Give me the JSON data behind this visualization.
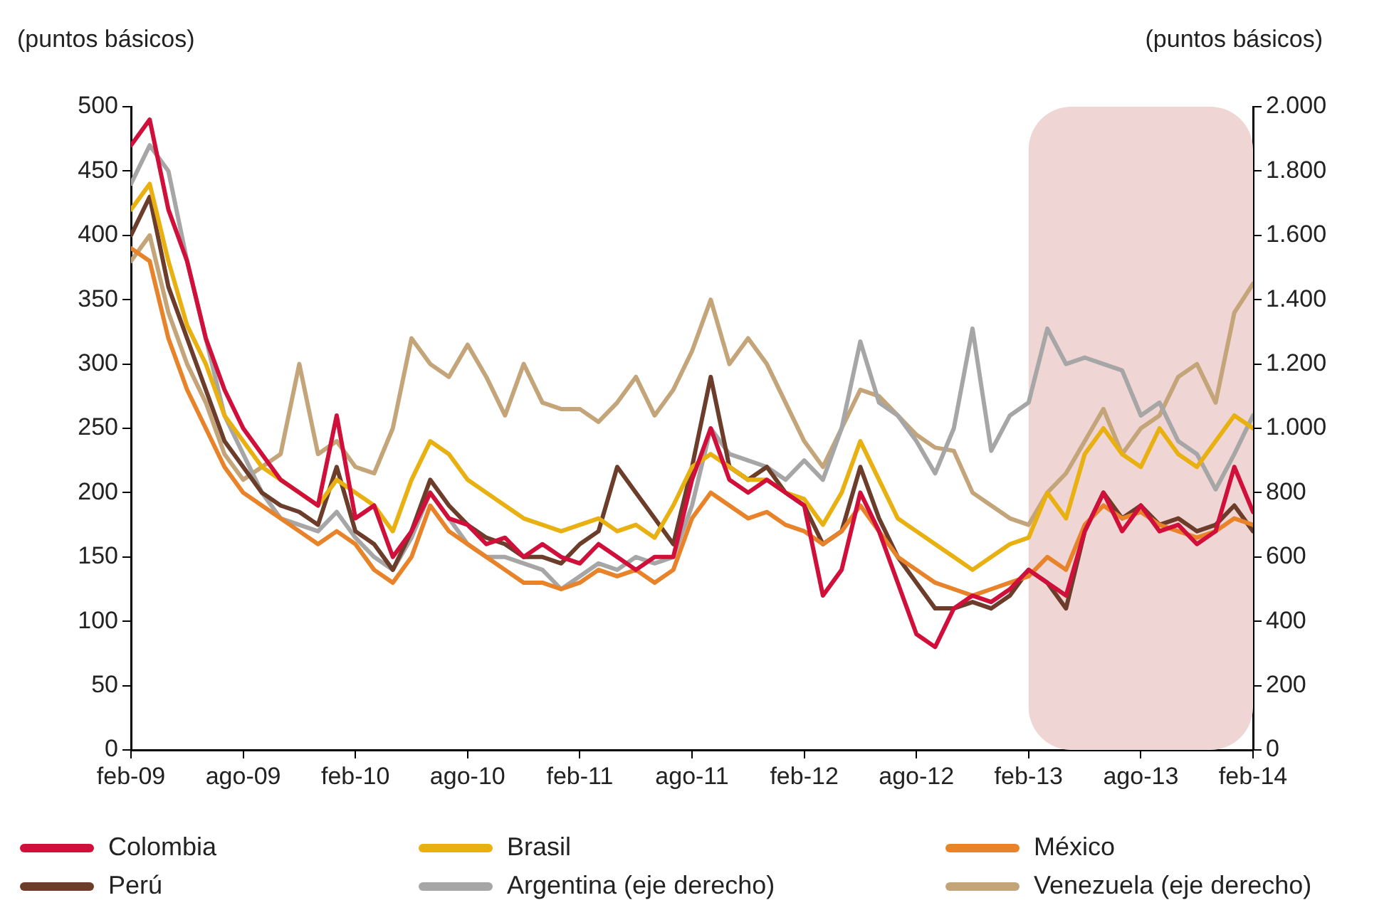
{
  "chart_data": {
    "type": "line",
    "ylabel": "(puntos básicos)",
    "y2label": "(puntos básicos)",
    "x": [
      "2009-02",
      "2009-03",
      "2009-04",
      "2009-05",
      "2009-06",
      "2009-07",
      "2009-08",
      "2009-09",
      "2009-10",
      "2009-11",
      "2009-12",
      "2010-01",
      "2010-02",
      "2010-03",
      "2010-04",
      "2010-05",
      "2010-06",
      "2010-07",
      "2010-08",
      "2010-09",
      "2010-10",
      "2010-11",
      "2010-12",
      "2011-01",
      "2011-02",
      "2011-03",
      "2011-04",
      "2011-05",
      "2011-06",
      "2011-07",
      "2011-08",
      "2011-09",
      "2011-10",
      "2011-11",
      "2011-12",
      "2012-01",
      "2012-02",
      "2012-03",
      "2012-04",
      "2012-05",
      "2012-06",
      "2012-07",
      "2012-08",
      "2012-09",
      "2012-10",
      "2012-11",
      "2012-12",
      "2013-01",
      "2013-02",
      "2013-03",
      "2013-04",
      "2013-05",
      "2013-06",
      "2013-07",
      "2013-08",
      "2013-09",
      "2013-10",
      "2013-11",
      "2013-12",
      "2014-01",
      "2014-02"
    ],
    "series": [
      {
        "name": "Colombia",
        "color": "#d0103a",
        "values": [
          470,
          490,
          420,
          380,
          320,
          280,
          250,
          230,
          210,
          200,
          190,
          260,
          180,
          190,
          150,
          170,
          200,
          180,
          175,
          160,
          165,
          150,
          160,
          150,
          145,
          160,
          150,
          140,
          150,
          150,
          210,
          250,
          210,
          200,
          210,
          200,
          190,
          120,
          140,
          200,
          170,
          130,
          90,
          80,
          110,
          120,
          115,
          125,
          140,
          130,
          120,
          170,
          200,
          170,
          190,
          170,
          175,
          160,
          170,
          220,
          185
        ]
      },
      {
        "name": "Brasil",
        "color": "#e8b010",
        "values": [
          420,
          440,
          380,
          330,
          300,
          260,
          240,
          220,
          210,
          200,
          190,
          210,
          200,
          190,
          170,
          210,
          240,
          230,
          210,
          200,
          190,
          180,
          175,
          170,
          175,
          180,
          170,
          175,
          165,
          190,
          220,
          230,
          220,
          210,
          210,
          200,
          195,
          175,
          200,
          240,
          210,
          180,
          170,
          160,
          150,
          140,
          150,
          160,
          165,
          200,
          180,
          230,
          250,
          230,
          220,
          250,
          230,
          220,
          240,
          260,
          250
        ]
      },
      {
        "name": "México",
        "color": "#e8832a",
        "values": [
          390,
          380,
          320,
          280,
          250,
          220,
          200,
          190,
          180,
          170,
          160,
          170,
          160,
          140,
          130,
          150,
          190,
          170,
          160,
          150,
          140,
          130,
          130,
          125,
          130,
          140,
          135,
          140,
          130,
          140,
          180,
          200,
          190,
          180,
          185,
          175,
          170,
          160,
          170,
          190,
          170,
          150,
          140,
          130,
          125,
          120,
          125,
          130,
          135,
          150,
          140,
          175,
          190,
          180,
          185,
          175,
          170,
          165,
          170,
          180,
          175
        ]
      },
      {
        "name": "Perú",
        "color": "#6b3d2a",
        "values": [
          400,
          430,
          360,
          320,
          280,
          240,
          220,
          200,
          190,
          185,
          175,
          220,
          170,
          160,
          140,
          170,
          210,
          190,
          175,
          165,
          160,
          150,
          150,
          145,
          160,
          170,
          220,
          200,
          180,
          160,
          220,
          290,
          220,
          210,
          220,
          200,
          190,
          160,
          170,
          220,
          180,
          150,
          130,
          110,
          110,
          115,
          110,
          120,
          140,
          130,
          110,
          170,
          200,
          180,
          190,
          175,
          180,
          170,
          175,
          190,
          170
        ]
      },
      {
        "name": "Argentina (eje derecho)",
        "color": "#a6a6a6",
        "axis": "y2",
        "values": [
          1760,
          1880,
          1800,
          1520,
          1280,
          1040,
          920,
          800,
          720,
          700,
          680,
          740,
          660,
          600,
          560,
          660,
          800,
          720,
          640,
          600,
          600,
          580,
          560,
          500,
          540,
          580,
          560,
          600,
          580,
          600,
          760,
          1000,
          920,
          900,
          880,
          840,
          900,
          840,
          1000,
          1270,
          1080,
          1040,
          960,
          860,
          1000,
          1310,
          930,
          1040,
          1080,
          1310,
          1200,
          1220,
          1200,
          1180,
          1040,
          1080,
          960,
          920,
          810,
          920,
          1040
        ]
      },
      {
        "name": "Venezuela (eje derecho)",
        "color": "#c4a57a",
        "axis": "y2",
        "values": [
          1520,
          1600,
          1360,
          1200,
          1080,
          920,
          840,
          880,
          920,
          1200,
          920,
          960,
          880,
          860,
          1000,
          1280,
          1200,
          1160,
          1260,
          1160,
          1040,
          1200,
          1080,
          1060,
          1060,
          1020,
          1080,
          1160,
          1040,
          1120,
          1240,
          1400,
          1200,
          1280,
          1200,
          1080,
          960,
          880,
          1000,
          1120,
          1100,
          1040,
          980,
          940,
          930,
          800,
          760,
          720,
          700,
          800,
          860,
          960,
          1060,
          920,
          1000,
          1040,
          1160,
          1200,
          1080,
          1360,
          1450
        ]
      }
    ],
    "xlim": [
      "2009-02",
      "2014-02"
    ],
    "xticks": [
      {
        "value": "2009-02",
        "label": "feb-09"
      },
      {
        "value": "2009-08",
        "label": "ago-09"
      },
      {
        "value": "2010-02",
        "label": "feb-10"
      },
      {
        "value": "2010-08",
        "label": "ago-10"
      },
      {
        "value": "2011-02",
        "label": "feb-11"
      },
      {
        "value": "2011-08",
        "label": "ago-11"
      },
      {
        "value": "2012-02",
        "label": "feb-12"
      },
      {
        "value": "2012-08",
        "label": "ago-12"
      },
      {
        "value": "2013-02",
        "label": "feb-13"
      },
      {
        "value": "2013-08",
        "label": "ago-13"
      },
      {
        "value": "2014-02",
        "label": "feb-14"
      }
    ],
    "ylim": [
      0,
      500
    ],
    "yticks": [
      0,
      50,
      100,
      150,
      200,
      250,
      300,
      350,
      400,
      450,
      500
    ],
    "y2lim": [
      0,
      2000
    ],
    "y2ticks": [
      0,
      {
        "value": 200,
        "label": "200"
      },
      {
        "value": 400,
        "label": "400"
      },
      {
        "value": 600,
        "label": "600"
      },
      {
        "value": 800,
        "label": "800"
      },
      {
        "value": 1000,
        "label": "1.000"
      },
      {
        "value": 1200,
        "label": "1.200"
      },
      {
        "value": 1400,
        "label": "1.400"
      },
      {
        "value": 1600,
        "label": "1.600"
      },
      {
        "value": 1800,
        "label": "1.800"
      },
      {
        "value": 2000,
        "label": "2.000"
      }
    ],
    "bands": [
      {
        "axis": "x",
        "from": "2013-02",
        "to": "2014-02",
        "color": "#efd6d4"
      }
    ],
    "grid": false,
    "legend": "bottom",
    "marker": "none",
    "line_style": "solid"
  }
}
